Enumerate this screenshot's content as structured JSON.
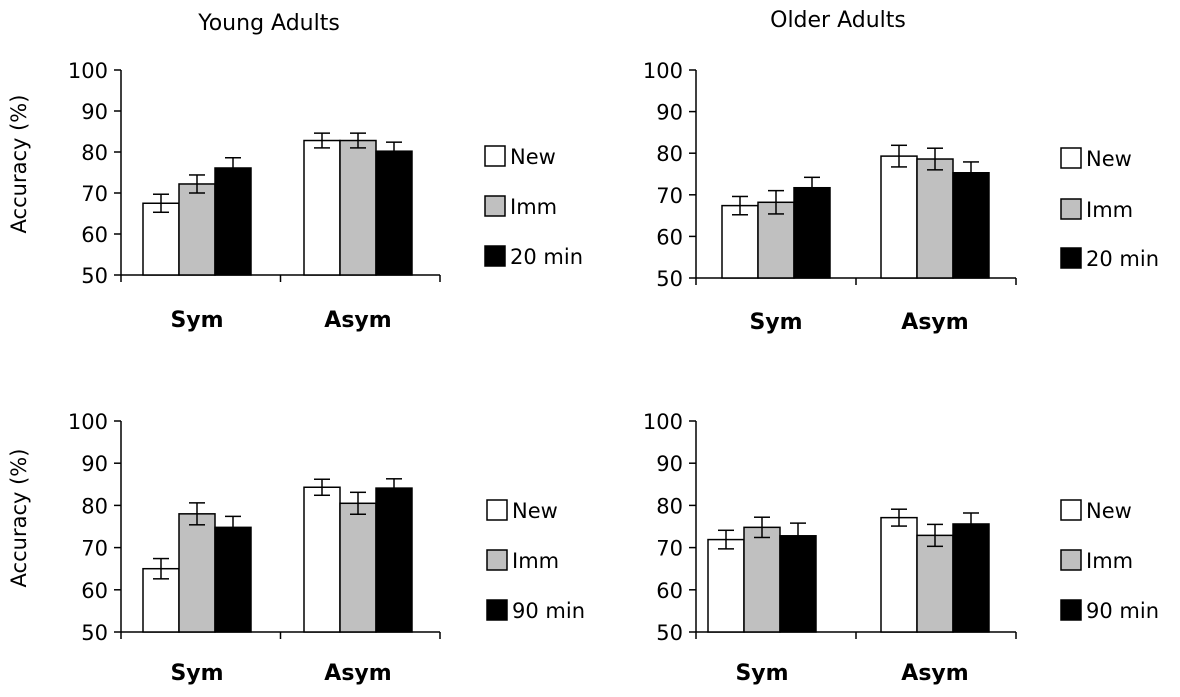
{
  "columns": [
    "Young Adults",
    "Older Adults"
  ],
  "chart_data": [
    {
      "type": "bar",
      "ylabel": "Accuracy (%)",
      "ylim": [
        50,
        100
      ],
      "yticks": [
        50,
        60,
        70,
        80,
        90,
        100
      ],
      "categories": [
        "Sym",
        "Asym"
      ],
      "series": [
        {
          "name": "New",
          "values": [
            67.5,
            82.8
          ],
          "errors": [
            2.2,
            1.8
          ],
          "color": "#ffffff"
        },
        {
          "name": "Imm",
          "values": [
            72.2,
            82.8
          ],
          "errors": [
            2.2,
            1.8
          ],
          "color": "#c0c0c0"
        },
        {
          "name": "20 min",
          "values": [
            76.1,
            80.2
          ],
          "errors": [
            2.5,
            2.2
          ],
          "color": "#000000"
        }
      ]
    },
    {
      "type": "bar",
      "ylabel": "",
      "ylim": [
        50,
        100
      ],
      "yticks": [
        50,
        60,
        70,
        80,
        90,
        100
      ],
      "categories": [
        "Sym",
        "Asym"
      ],
      "series": [
        {
          "name": "New",
          "values": [
            67.4,
            79.3
          ],
          "errors": [
            2.2,
            2.6
          ],
          "color": "#ffffff"
        },
        {
          "name": "Imm",
          "values": [
            68.2,
            78.6
          ],
          "errors": [
            2.8,
            2.6
          ],
          "color": "#c0c0c0"
        },
        {
          "name": "20 min",
          "values": [
            71.7,
            75.3
          ],
          "errors": [
            2.5,
            2.6
          ],
          "color": "#000000"
        }
      ]
    },
    {
      "type": "bar",
      "ylabel": "Accuracy (%)",
      "ylim": [
        50,
        100
      ],
      "yticks": [
        50,
        60,
        70,
        80,
        90,
        100
      ],
      "categories": [
        "Sym",
        "Asym"
      ],
      "series": [
        {
          "name": "New",
          "values": [
            65.0,
            84.3
          ],
          "errors": [
            2.4,
            1.9
          ],
          "color": "#ffffff"
        },
        {
          "name": "Imm",
          "values": [
            78.0,
            80.5
          ],
          "errors": [
            2.6,
            2.6
          ],
          "color": "#c0c0c0"
        },
        {
          "name": "90 min",
          "values": [
            74.8,
            84.1
          ],
          "errors": [
            2.6,
            2.2
          ],
          "color": "#000000"
        }
      ]
    },
    {
      "type": "bar",
      "ylabel": "",
      "ylim": [
        50,
        100
      ],
      "yticks": [
        50,
        60,
        70,
        80,
        90,
        100
      ],
      "categories": [
        "Sym",
        "Asym"
      ],
      "series": [
        {
          "name": "New",
          "values": [
            71.9,
            77.1
          ],
          "errors": [
            2.2,
            2.0
          ],
          "color": "#ffffff"
        },
        {
          "name": "Imm",
          "values": [
            74.8,
            72.9
          ],
          "errors": [
            2.4,
            2.6
          ],
          "color": "#c0c0c0"
        },
        {
          "name": "90 min",
          "values": [
            72.8,
            75.6
          ],
          "errors": [
            3.0,
            2.6
          ],
          "color": "#000000"
        }
      ]
    }
  ]
}
